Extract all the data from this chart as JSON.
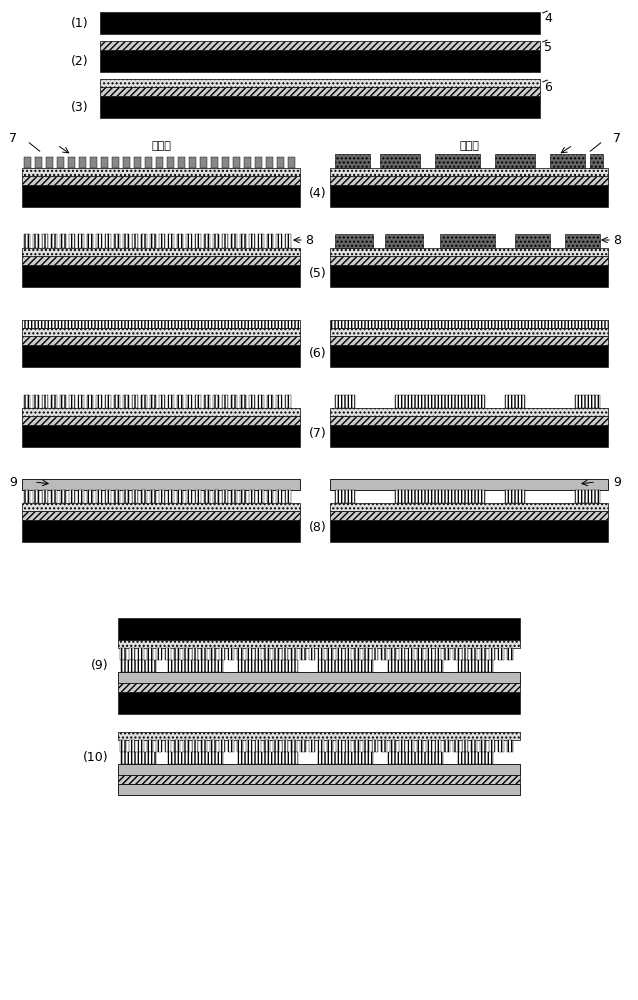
{
  "bg": "#ffffff",
  "black": "#000000",
  "white": "#ffffff",
  "gray_hatch": "#cccccc",
  "gray_dot": "#e8e8e8",
  "gray_wave": "#d0d0d0",
  "gray_bump_dark": "#666666",
  "gray_bump_light": "#999999"
}
